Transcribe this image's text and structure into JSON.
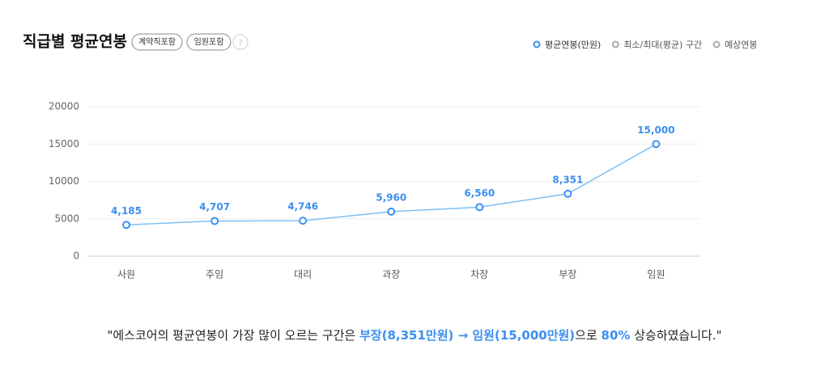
{
  "header": {
    "title": "직급별 평균연봉",
    "badges": [
      "계약직포함",
      "임원포함"
    ],
    "help": "?"
  },
  "chart_data": {
    "type": "line",
    "categories": [
      "사원",
      "주임",
      "대리",
      "과장",
      "차장",
      "부장",
      "임원"
    ],
    "series": [
      {
        "name": "평균연봉(만원)",
        "color": "#7cc0f4",
        "values": [
          4185,
          4707,
          4746,
          5960,
          6560,
          8351,
          15000
        ],
        "value_labels": [
          "4,185",
          "4,707",
          "4,746",
          "5,960",
          "6,560",
          "8,351",
          "15,000"
        ]
      }
    ],
    "other_legend": [
      "최소/최대(평균) 구간",
      "예상연봉"
    ],
    "legend": "top-right",
    "ylim": [
      0,
      20000
    ],
    "yticks": [
      0,
      5000,
      10000,
      15000,
      20000
    ],
    "grid": true
  },
  "footer": {
    "parts": [
      {
        "text": "\"에스코어의 평균연봉이 가장 많이 오르는 구간은 ",
        "highlight": false
      },
      {
        "text": "부장(8,351만원) → 임원(15,000만원)",
        "highlight": true
      },
      {
        "text": "으로 ",
        "highlight": false
      },
      {
        "text": "80%",
        "highlight": true
      },
      {
        "text": " 상승하였습니다.\"",
        "highlight": false
      }
    ]
  }
}
